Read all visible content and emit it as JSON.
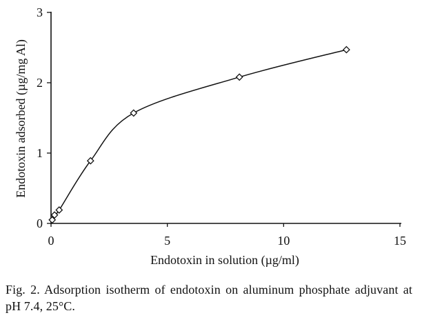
{
  "chart_data": {
    "type": "scatter",
    "title": "",
    "xlabel": "Endotoxin in solution (µg/ml)",
    "ylabel": "Endotoxin adsorbed (µg/mg Al)",
    "xlim": [
      0,
      15
    ],
    "ylim": [
      0,
      3
    ],
    "xticks": [
      0,
      5,
      10,
      15
    ],
    "yticks": [
      0,
      1,
      2,
      3
    ],
    "grid": false,
    "marker": "open-diamond",
    "smooth_curve": true,
    "series": [
      {
        "x": [
          0.05,
          0.15,
          0.35,
          1.7,
          3.55,
          8.1,
          12.7
        ],
        "y": [
          0.05,
          0.12,
          0.19,
          0.89,
          1.57,
          2.08,
          2.47
        ]
      }
    ]
  },
  "caption": "Fig. 2. Adsorption isotherm of endotoxin on aluminum phosphate adjuvant at pH 7.4, 25°C."
}
